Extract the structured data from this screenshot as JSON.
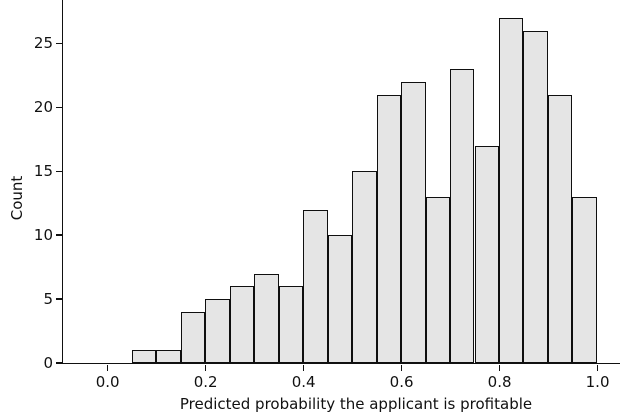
{
  "chart_data": {
    "type": "bar",
    "subtype": "histogram",
    "title": "",
    "xlabel": "Predicted probability the applicant is profitable",
    "ylabel": "Count",
    "bin_start": 0.05,
    "bin_width": 0.05,
    "bin_edges": [
      0.05,
      0.1,
      0.15,
      0.2,
      0.25,
      0.3,
      0.35,
      0.4,
      0.45,
      0.5,
      0.55,
      0.6,
      0.65,
      0.7,
      0.75,
      0.8,
      0.85,
      0.9,
      0.95,
      1.0
    ],
    "counts": [
      1,
      1,
      4,
      5,
      6,
      7,
      6,
      12,
      10,
      15,
      21,
      22,
      13,
      23,
      17,
      27,
      26,
      21,
      13
    ],
    "total_count": 250,
    "x_ticks": [
      "0.0",
      "0.2",
      "0.4",
      "0.6",
      "0.8",
      "1.0"
    ],
    "x_tick_values": [
      0.0,
      0.2,
      0.4,
      0.6,
      0.8,
      1.0
    ],
    "y_ticks": [
      "0",
      "5",
      "10",
      "15",
      "20",
      "25"
    ],
    "y_tick_values": [
      0,
      5,
      10,
      15,
      20,
      25
    ],
    "xlim": [
      -0.09,
      1.047
    ],
    "ylim": [
      0,
      28.4
    ],
    "grid": false,
    "legend": null,
    "spines": [
      "left",
      "bottom"
    ],
    "colors": {
      "bar_fill": "#e5e5e5",
      "bar_edge": "#0f0f0f",
      "axis": "#111111",
      "text": "#111111",
      "background": "#ffffff"
    }
  }
}
